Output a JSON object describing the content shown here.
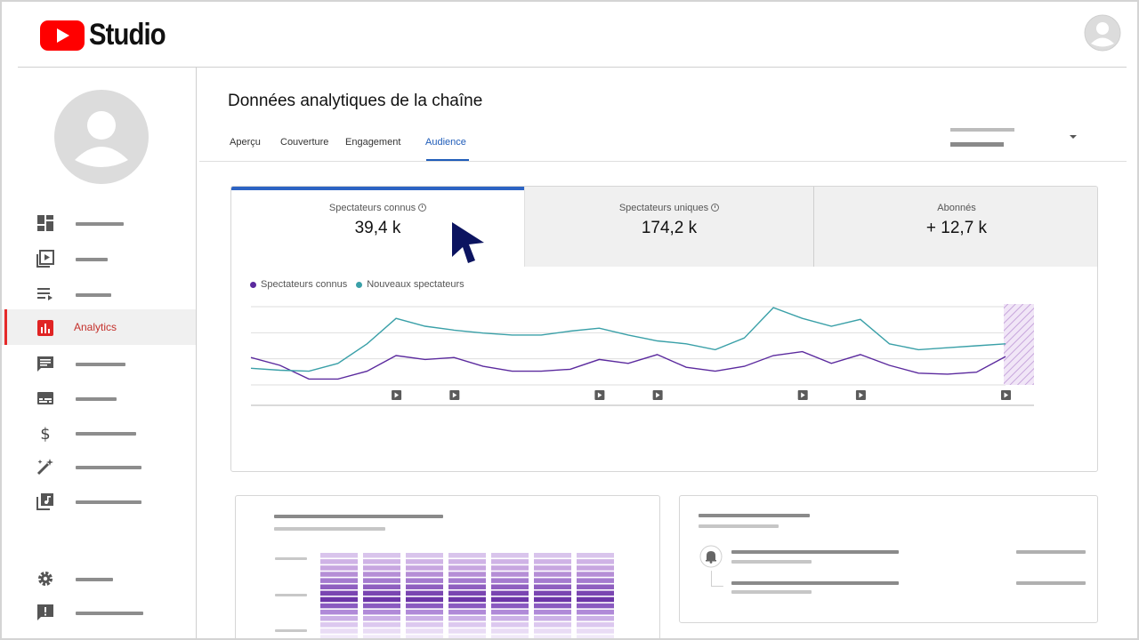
{
  "app": {
    "logo_text": "Studio",
    "brand_color": "#ff0000"
  },
  "sidebar": {
    "items": [
      {
        "icon": "dashboard-icon"
      },
      {
        "icon": "content-icon"
      },
      {
        "icon": "playlists-icon"
      },
      {
        "icon": "analytics-icon",
        "label": "Analytics",
        "active": true
      },
      {
        "icon": "comments-icon"
      },
      {
        "icon": "subtitles-icon"
      },
      {
        "icon": "monetization-icon"
      },
      {
        "icon": "customization-icon"
      },
      {
        "icon": "audio-library-icon"
      },
      {
        "icon": "settings-icon"
      },
      {
        "icon": "feedback-icon"
      }
    ]
  },
  "main": {
    "title": "Données analytiques de la chaîne",
    "tabs": [
      {
        "label": "Aperçu"
      },
      {
        "label": "Couverture"
      },
      {
        "label": "Engagement"
      },
      {
        "label": "Audience",
        "active": true
      }
    ]
  },
  "metrics": [
    {
      "label": "Spectateurs connus",
      "value": "39,4 k",
      "active": true
    },
    {
      "label": "Spectateurs uniques",
      "value": "174,2 k"
    },
    {
      "label": "Abonnés",
      "value": "+ 12,7 k"
    }
  ],
  "legend": {
    "series1": "Spectateurs connus",
    "series2": "Nouveaux spectateurs"
  },
  "colors": {
    "accent_blue": "#2c63c3",
    "series_purple": "#5b2a9e",
    "series_teal": "#3aa0a8",
    "active_red": "#c4302b"
  },
  "chart_data": {
    "type": "line",
    "title": "",
    "xlabel": "",
    "ylabel": "",
    "x": [
      0,
      1,
      2,
      3,
      4,
      5,
      6,
      7,
      8,
      9,
      10,
      11,
      12,
      13,
      14,
      15,
      16,
      17,
      18,
      19,
      20,
      21,
      22,
      23,
      24,
      25,
      26
    ],
    "series": [
      {
        "name": "Spectateurs connus",
        "color": "#5b2a9e",
        "values": [
          2.8,
          2.0,
          0.6,
          0.6,
          1.4,
          3.0,
          2.6,
          2.8,
          1.9,
          1.4,
          1.4,
          1.6,
          2.6,
          2.2,
          3.1,
          1.8,
          1.4,
          1.9,
          3.0,
          3.4,
          2.2,
          3.1,
          2.0,
          1.2,
          1.1,
          1.3,
          2.9
        ]
      },
      {
        "name": "Nouveaux spectateurs",
        "color": "#3aa0a8",
        "values": [
          1.7,
          1.5,
          1.4,
          2.2,
          4.2,
          6.8,
          6.0,
          5.6,
          5.3,
          5.1,
          5.1,
          5.5,
          5.8,
          5.1,
          4.5,
          4.2,
          3.6,
          4.8,
          7.9,
          6.8,
          6.0,
          6.7,
          4.2,
          3.6,
          3.8,
          4.0,
          4.2
        ]
      }
    ],
    "ylim": [
      0,
      8
    ],
    "gridlines": 3,
    "video_markers_at": [
      5,
      7,
      12,
      14,
      19,
      21,
      26
    ],
    "grid": true,
    "legend": "top-left"
  }
}
